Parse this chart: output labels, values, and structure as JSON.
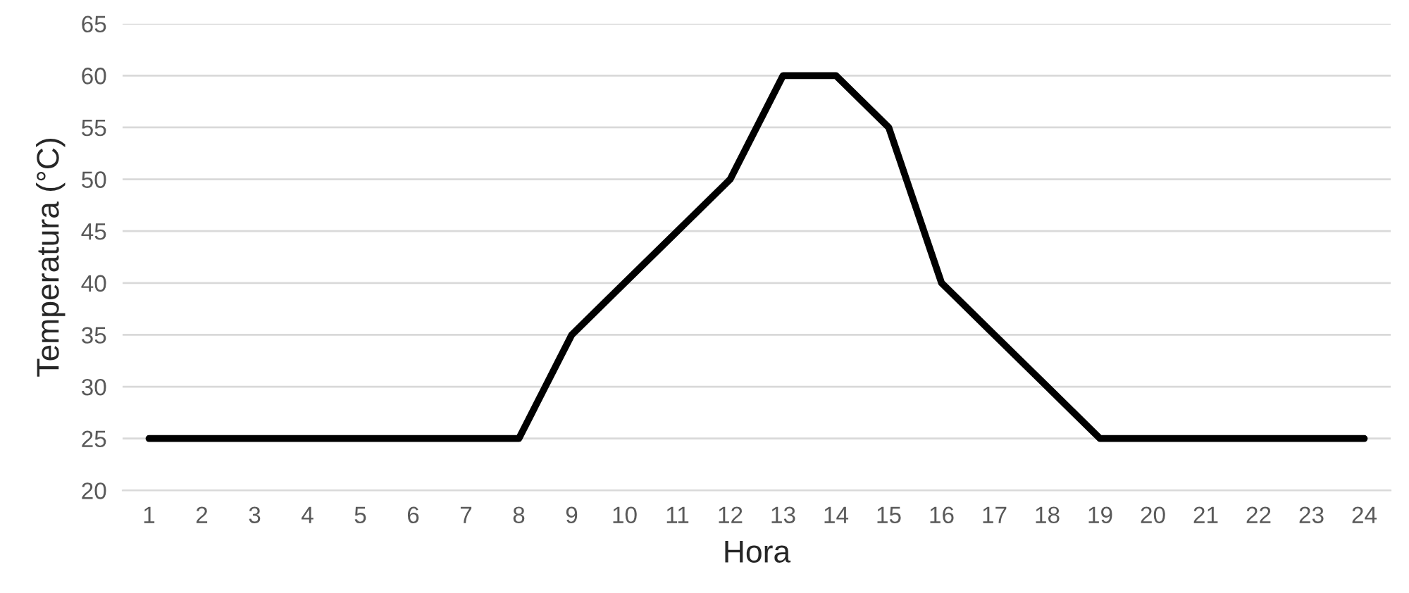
{
  "chart_data": {
    "type": "line",
    "xlabel": "Hora",
    "ylabel": "Temperatura (°C)",
    "categories": [
      "1",
      "2",
      "3",
      "4",
      "5",
      "6",
      "7",
      "8",
      "9",
      "10",
      "11",
      "12",
      "13",
      "14",
      "15",
      "16",
      "17",
      "18",
      "19",
      "20",
      "21",
      "22",
      "23",
      "24"
    ],
    "series": [
      {
        "color": "#000000",
        "values": [
          25,
          25,
          25,
          25,
          25,
          25,
          25,
          25,
          35,
          40,
          45,
          50,
          60,
          60,
          55,
          40,
          35,
          30,
          25,
          25,
          25,
          25,
          25,
          25
        ]
      }
    ],
    "ylim": [
      20,
      65
    ],
    "yticks": [
      20,
      25,
      30,
      35,
      40,
      45,
      50,
      55,
      60,
      65
    ],
    "grid": "y",
    "marker": "none",
    "line_style": "solid"
  }
}
